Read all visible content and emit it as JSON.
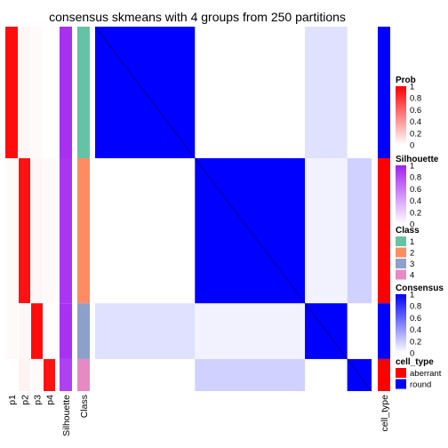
{
  "chart_data": {
    "type": "heatmap",
    "title": "consensus skmeans with 4 groups from 250 partitions",
    "columns": [
      "p1",
      "p2",
      "p3",
      "p4",
      "Silhouette",
      "Class"
    ],
    "right_column": "cell_type",
    "groups": [
      {
        "class": "1",
        "size": 0.361,
        "prob": [
          0.95,
          0.03,
          0.02,
          0.0
        ],
        "silhouette": 0.93
      },
      {
        "class": "2",
        "size": 0.398,
        "prob": [
          0.02,
          0.93,
          0.03,
          0.02
        ],
        "silhouette": 0.9
      },
      {
        "class": "3",
        "size": 0.153,
        "prob": [
          0.02,
          0.03,
          0.95,
          0.0
        ],
        "silhouette": 0.92
      },
      {
        "class": "4",
        "size": 0.088,
        "prob": [
          0.0,
          0.05,
          0.02,
          0.93
        ],
        "silhouette": 0.85
      }
    ],
    "legends": [
      {
        "title": "Prob",
        "type": "gradient",
        "colors": [
          "#ffffff",
          "#ff0000"
        ],
        "ticks": [
          "1",
          "0.8",
          "0.6",
          "0.4",
          "0.2",
          "0"
        ]
      },
      {
        "title": "Silhouette",
        "type": "gradient",
        "colors": [
          "#ffffff",
          "#a020f0"
        ],
        "ticks": [
          "1",
          "0.8",
          "0.6",
          "0.4",
          "0.2",
          "0"
        ]
      },
      {
        "title": "Class",
        "type": "discrete",
        "items": [
          {
            "label": "1",
            "color": "#66c2a5"
          },
          {
            "label": "2",
            "color": "#fc8d62"
          },
          {
            "label": "3",
            "color": "#8da0cb"
          },
          {
            "label": "4",
            "color": "#e78ac3"
          }
        ]
      },
      {
        "title": "Consensus",
        "type": "gradient",
        "colors": [
          "#ffffff",
          "#0000ff"
        ],
        "ticks": [
          "1",
          "0.8",
          "0.6",
          "0.4",
          "0.2",
          "0"
        ]
      },
      {
        "title": "cell_type",
        "type": "discrete",
        "items": [
          {
            "label": "aberrant",
            "color": "#ff0000"
          },
          {
            "label": "round",
            "color": "#0000ff"
          }
        ]
      }
    ]
  }
}
